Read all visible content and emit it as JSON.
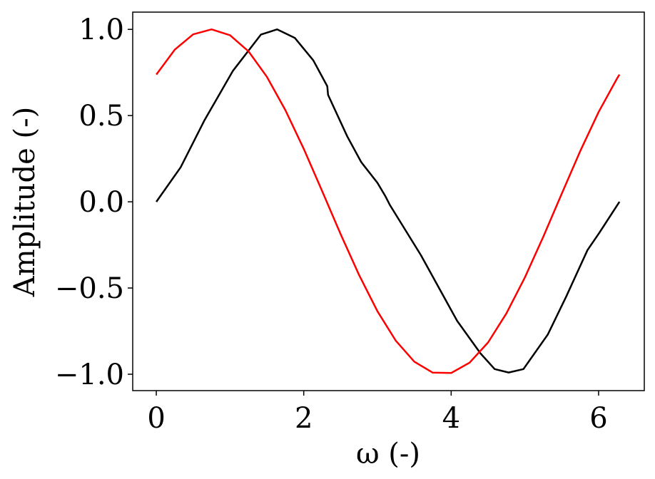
{
  "chart_data": {
    "type": "line",
    "title": "",
    "xlabel": "ω (-)",
    "ylabel": "Amplitude (-)",
    "xlim": [
      -0.32,
      6.62
    ],
    "ylim": [
      -1.095,
      1.1
    ],
    "grid": false,
    "xticks": [
      0,
      2,
      4,
      6
    ],
    "xtick_labels": [
      "0",
      "2",
      "4",
      "6"
    ],
    "yticks": [
      -1.0,
      -0.5,
      0.0,
      0.5,
      1.0
    ],
    "ytick_labels": [
      "−1.0",
      "−0.5",
      "0.0",
      "0.5",
      "1.0"
    ],
    "series": [
      {
        "color": "#000000",
        "x": [
          0,
          0.33,
          0.65,
          1.04,
          1.42,
          1.64,
          1.88,
          2.13,
          2.32,
          2.33,
          2.59,
          2.78,
          3.0,
          3.11,
          3.17,
          3.59,
          4.08,
          4.4,
          4.59,
          4.78,
          4.98,
          5.31,
          5.56,
          5.85,
          6.01,
          6.283
        ],
        "y": [
          0,
          0.2,
          0.47,
          0.76,
          0.97,
          1.0,
          0.95,
          0.82,
          0.67,
          0.62,
          0.38,
          0.23,
          0.11,
          0.03,
          -0.02,
          -0.31,
          -0.69,
          -0.88,
          -0.97,
          -0.99,
          -0.97,
          -0.77,
          -0.55,
          -0.28,
          -0.18,
          0
        ]
      },
      {
        "color": "#ff0000",
        "x": [
          0,
          0.25,
          0.5,
          0.75,
          1.0,
          1.25,
          1.5,
          1.75,
          2.0,
          2.25,
          2.5,
          2.75,
          3.0,
          3.25,
          3.5,
          3.75,
          4.0,
          4.25,
          4.5,
          4.75,
          5.0,
          5.25,
          5.5,
          5.75,
          6.0,
          6.25,
          6.283
        ],
        "y": [
          0.738,
          0.882,
          0.971,
          1.0,
          0.966,
          0.873,
          0.725,
          0.532,
          0.307,
          0.062,
          -0.187,
          -0.424,
          -0.635,
          -0.806,
          -0.927,
          -0.991,
          -0.993,
          -0.933,
          -0.816,
          -0.647,
          -0.439,
          -0.202,
          0.047,
          0.293,
          0.52,
          0.715,
          0.738
        ]
      }
    ]
  }
}
